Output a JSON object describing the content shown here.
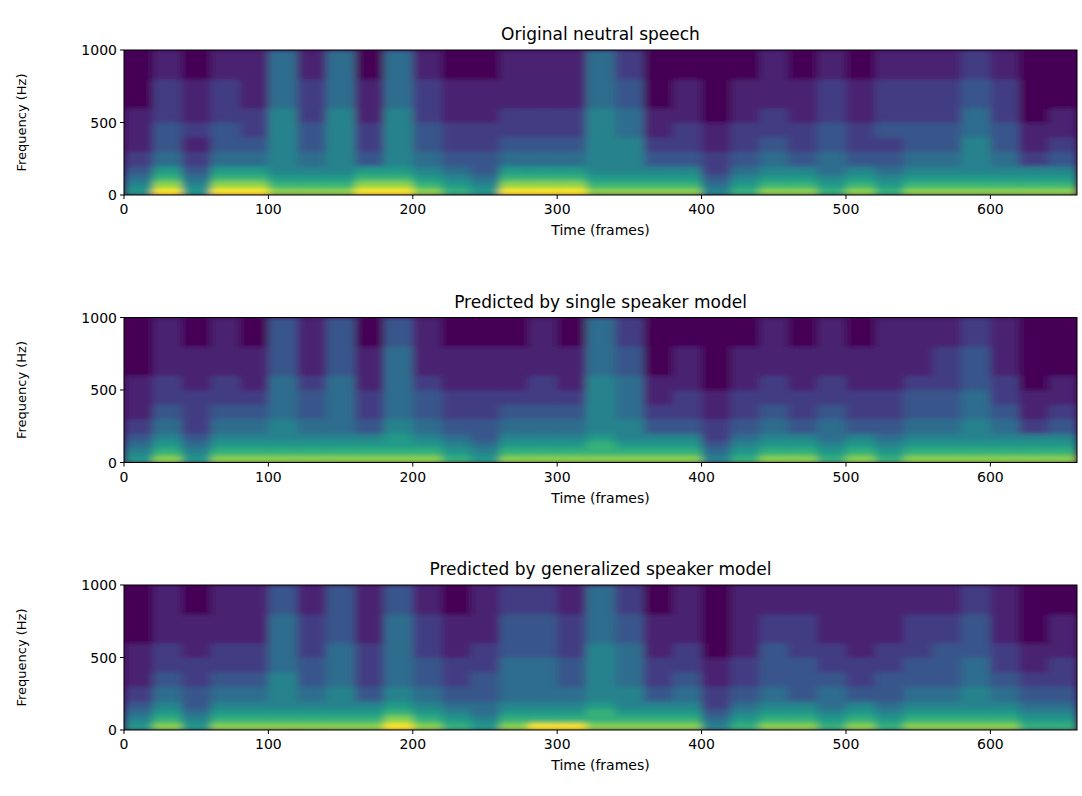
{
  "chart_data": [
    {
      "type": "heatmap",
      "title": "Original neutral speech",
      "x_label": "Time (frames)",
      "y_label": "Frequency (Hz)",
      "xlim": [
        0,
        660
      ],
      "ylim": [
        0,
        1000
      ],
      "xticks": [
        0,
        100,
        200,
        300,
        400,
        500,
        600
      ],
      "yticks": [
        0,
        500,
        1000
      ],
      "zlim": [
        0,
        9
      ],
      "x_bins": [
        0,
        20,
        40,
        60,
        80,
        100,
        120,
        140,
        160,
        180,
        200,
        220,
        240,
        260,
        280,
        300,
        320,
        340,
        360,
        380,
        400,
        420,
        440,
        460,
        480,
        500,
        520,
        540,
        560,
        580,
        600,
        620,
        640,
        660
      ],
      "y_bins": [
        0,
        50,
        100,
        150,
        200,
        300,
        400,
        500,
        600,
        800,
        1000
      ],
      "cells": [
        [
          6,
          9,
          6,
          9,
          9,
          8,
          8,
          8,
          9,
          9,
          8,
          7,
          6,
          9,
          9,
          9,
          8,
          8,
          8,
          8,
          5,
          7,
          8,
          8,
          7,
          8,
          7,
          8,
          8,
          8,
          8,
          8,
          8
        ],
        [
          5,
          8,
          5,
          8,
          8,
          7,
          7,
          7,
          8,
          8,
          7,
          6,
          5,
          8,
          8,
          8,
          7,
          7,
          7,
          7,
          4,
          6,
          7,
          7,
          6,
          7,
          6,
          7,
          7,
          7,
          7,
          7,
          7
        ],
        [
          4,
          7,
          4,
          7,
          7,
          6,
          6,
          6,
          7,
          7,
          6,
          5,
          4,
          7,
          7,
          7,
          6,
          6,
          6,
          6,
          3,
          5,
          6,
          6,
          5,
          6,
          5,
          6,
          6,
          6,
          6,
          6,
          6
        ],
        [
          3,
          6,
          3,
          6,
          6,
          5,
          5,
          5,
          6,
          6,
          5,
          4,
          3,
          6,
          6,
          6,
          5,
          5,
          5,
          5,
          2,
          4,
          5,
          5,
          4,
          5,
          4,
          5,
          5,
          5,
          5,
          5,
          5
        ],
        [
          2,
          4,
          2,
          4,
          4,
          5,
          4,
          5,
          3,
          5,
          4,
          3,
          3,
          4,
          4,
          4,
          5,
          5,
          3,
          3,
          2,
          3,
          4,
          3,
          4,
          3,
          3,
          4,
          4,
          5,
          4,
          2,
          3
        ],
        [
          1,
          3,
          1,
          3,
          3,
          5,
          3,
          5,
          2,
          5,
          3,
          2,
          2,
          3,
          3,
          3,
          5,
          5,
          2,
          2,
          1,
          2,
          3,
          2,
          3,
          2,
          2,
          3,
          3,
          5,
          3,
          1,
          2
        ],
        [
          1,
          3,
          2,
          3,
          2,
          5,
          3,
          5,
          2,
          5,
          3,
          2,
          2,
          2,
          2,
          2,
          5,
          4,
          1,
          2,
          1,
          2,
          2,
          2,
          3,
          2,
          3,
          3,
          3,
          4,
          3,
          1,
          1
        ],
        [
          1,
          2,
          1,
          2,
          2,
          5,
          2,
          5,
          1,
          5,
          2,
          1,
          1,
          2,
          2,
          2,
          5,
          4,
          1,
          1,
          0,
          1,
          2,
          1,
          2,
          1,
          2,
          2,
          2,
          4,
          2,
          0,
          1
        ],
        [
          0,
          2,
          1,
          2,
          1,
          4,
          2,
          4,
          1,
          4,
          2,
          1,
          1,
          1,
          1,
          1,
          4,
          3,
          0,
          1,
          0,
          1,
          1,
          1,
          2,
          1,
          2,
          2,
          2,
          3,
          2,
          0,
          0
        ],
        [
          0,
          1,
          0,
          1,
          1,
          4,
          1,
          4,
          0,
          4,
          1,
          0,
          0,
          1,
          1,
          1,
          4,
          2,
          0,
          0,
          0,
          0,
          1,
          0,
          1,
          0,
          1,
          1,
          1,
          2,
          1,
          0,
          0
        ]
      ]
    },
    {
      "type": "heatmap",
      "title": "Predicted by single speaker model",
      "x_label": "Time (frames)",
      "y_label": "Frequency (Hz)",
      "xlim": [
        0,
        660
      ],
      "ylim": [
        0,
        1000
      ],
      "xticks": [
        0,
        100,
        200,
        300,
        400,
        500,
        600
      ],
      "yticks": [
        0,
        500,
        1000
      ],
      "zlim": [
        0,
        9
      ],
      "x_bins": [
        0,
        20,
        40,
        60,
        80,
        100,
        120,
        140,
        160,
        180,
        200,
        220,
        240,
        260,
        280,
        300,
        320,
        340,
        360,
        380,
        400,
        420,
        440,
        460,
        480,
        500,
        520,
        540,
        560,
        580,
        600,
        620,
        640,
        660
      ],
      "y_bins": [
        0,
        50,
        100,
        150,
        200,
        300,
        400,
        500,
        600,
        800,
        1000
      ],
      "cells": [
        [
          6,
          8,
          6,
          8,
          8,
          8,
          8,
          8,
          8,
          8,
          8,
          7,
          6,
          8,
          8,
          8,
          8,
          8,
          8,
          8,
          5,
          7,
          8,
          8,
          7,
          8,
          7,
          8,
          8,
          8,
          8,
          8,
          8
        ],
        [
          5,
          7,
          5,
          7,
          7,
          7,
          7,
          7,
          7,
          7,
          7,
          6,
          5,
          7,
          7,
          7,
          7,
          7,
          7,
          7,
          4,
          6,
          7,
          7,
          6,
          7,
          6,
          7,
          7,
          7,
          7,
          7,
          7
        ],
        [
          4,
          6,
          4,
          6,
          6,
          6,
          6,
          6,
          6,
          6,
          6,
          5,
          4,
          6,
          6,
          6,
          7,
          6,
          6,
          6,
          3,
          5,
          6,
          6,
          5,
          6,
          5,
          6,
          6,
          6,
          6,
          6,
          6
        ],
        [
          3,
          5,
          3,
          5,
          5,
          5,
          5,
          5,
          5,
          6,
          5,
          4,
          3,
          5,
          5,
          5,
          6,
          5,
          5,
          5,
          2,
          4,
          5,
          5,
          4,
          5,
          4,
          5,
          5,
          5,
          5,
          5,
          5
        ],
        [
          2,
          4,
          2,
          4,
          4,
          5,
          4,
          4,
          3,
          5,
          4,
          3,
          3,
          4,
          4,
          4,
          5,
          5,
          3,
          3,
          2,
          3,
          4,
          3,
          4,
          3,
          3,
          4,
          4,
          5,
          4,
          2,
          3
        ],
        [
          1,
          3,
          2,
          3,
          3,
          4,
          3,
          4,
          2,
          4,
          3,
          2,
          2,
          3,
          3,
          3,
          5,
          4,
          2,
          2,
          1,
          2,
          3,
          2,
          3,
          2,
          2,
          3,
          3,
          4,
          3,
          1,
          2
        ],
        [
          1,
          2,
          2,
          2,
          2,
          4,
          3,
          4,
          2,
          4,
          3,
          2,
          2,
          2,
          2,
          2,
          5,
          4,
          1,
          2,
          1,
          2,
          2,
          2,
          2,
          2,
          2,
          3,
          3,
          4,
          2,
          1,
          1
        ],
        [
          1,
          2,
          1,
          2,
          1,
          4,
          2,
          4,
          1,
          4,
          2,
          1,
          1,
          1,
          2,
          1,
          5,
          4,
          1,
          1,
          0,
          1,
          2,
          1,
          2,
          1,
          1,
          2,
          2,
          3,
          2,
          0,
          1
        ],
        [
          0,
          1,
          1,
          1,
          1,
          3,
          1,
          3,
          1,
          4,
          1,
          1,
          1,
          1,
          1,
          1,
          4,
          3,
          0,
          1,
          0,
          1,
          1,
          1,
          1,
          1,
          1,
          1,
          2,
          3,
          1,
          0,
          0
        ],
        [
          0,
          1,
          0,
          1,
          0,
          3,
          1,
          3,
          0,
          3,
          1,
          0,
          0,
          0,
          1,
          0,
          4,
          2,
          0,
          0,
          0,
          0,
          1,
          0,
          1,
          0,
          1,
          1,
          1,
          2,
          1,
          0,
          0
        ]
      ]
    },
    {
      "type": "heatmap",
      "title": "Predicted by generalized speaker model",
      "x_label": "Time (frames)",
      "y_label": "Frequency (Hz)",
      "xlim": [
        0,
        660
      ],
      "ylim": [
        0,
        1000
      ],
      "xticks": [
        0,
        100,
        200,
        300,
        400,
        500,
        600
      ],
      "yticks": [
        0,
        500,
        1000
      ],
      "zlim": [
        0,
        9
      ],
      "x_bins": [
        0,
        20,
        40,
        60,
        80,
        100,
        120,
        140,
        160,
        180,
        200,
        220,
        240,
        260,
        280,
        300,
        320,
        340,
        360,
        380,
        400,
        420,
        440,
        460,
        480,
        500,
        520,
        540,
        560,
        580,
        600,
        620,
        640,
        660
      ],
      "y_bins": [
        0,
        50,
        100,
        150,
        200,
        300,
        400,
        500,
        600,
        800,
        1000
      ],
      "cells": [
        [
          6,
          8,
          6,
          8,
          8,
          8,
          8,
          8,
          8,
          9,
          8,
          7,
          6,
          8,
          9,
          9,
          8,
          8,
          8,
          8,
          5,
          7,
          8,
          8,
          7,
          8,
          7,
          8,
          8,
          8,
          8,
          7,
          7
        ],
        [
          5,
          7,
          5,
          7,
          7,
          7,
          7,
          7,
          7,
          8,
          7,
          6,
          5,
          7,
          7,
          7,
          7,
          7,
          7,
          7,
          4,
          6,
          7,
          7,
          6,
          7,
          6,
          7,
          7,
          7,
          7,
          6,
          6
        ],
        [
          4,
          6,
          4,
          6,
          6,
          6,
          6,
          6,
          6,
          7,
          6,
          5,
          4,
          6,
          6,
          6,
          7,
          6,
          6,
          6,
          3,
          5,
          6,
          6,
          5,
          6,
          5,
          6,
          6,
          6,
          6,
          5,
          5
        ],
        [
          3,
          5,
          3,
          5,
          5,
          5,
          5,
          5,
          5,
          6,
          5,
          4,
          4,
          5,
          5,
          5,
          6,
          5,
          5,
          5,
          2,
          4,
          5,
          5,
          4,
          5,
          4,
          5,
          5,
          5,
          5,
          4,
          4
        ],
        [
          2,
          4,
          3,
          4,
          4,
          5,
          4,
          5,
          3,
          5,
          4,
          3,
          3,
          4,
          4,
          4,
          5,
          5,
          3,
          4,
          2,
          3,
          4,
          3,
          4,
          3,
          3,
          4,
          4,
          5,
          4,
          3,
          3
        ],
        [
          1,
          3,
          2,
          3,
          3,
          5,
          3,
          4,
          2,
          4,
          3,
          2,
          3,
          4,
          4,
          3,
          5,
          4,
          2,
          3,
          1,
          2,
          3,
          3,
          3,
          2,
          3,
          3,
          3,
          4,
          3,
          2,
          2
        ],
        [
          1,
          2,
          2,
          2,
          2,
          4,
          3,
          4,
          2,
          4,
          3,
          2,
          2,
          4,
          4,
          3,
          5,
          4,
          2,
          2,
          1,
          2,
          3,
          3,
          2,
          2,
          2,
          3,
          3,
          4,
          2,
          1,
          2
        ],
        [
          1,
          2,
          1,
          2,
          2,
          4,
          2,
          4,
          2,
          4,
          2,
          1,
          2,
          3,
          3,
          2,
          5,
          4,
          1,
          2,
          0,
          1,
          3,
          2,
          2,
          1,
          2,
          2,
          3,
          3,
          2,
          1,
          1
        ],
        [
          0,
          1,
          1,
          1,
          1,
          4,
          2,
          3,
          1,
          4,
          2,
          1,
          1,
          3,
          3,
          2,
          4,
          3,
          1,
          1,
          0,
          1,
          2,
          2,
          1,
          1,
          1,
          2,
          2,
          3,
          1,
          0,
          1
        ],
        [
          0,
          1,
          0,
          1,
          1,
          3,
          1,
          3,
          1,
          3,
          1,
          0,
          1,
          2,
          2,
          1,
          4,
          2,
          0,
          1,
          0,
          1,
          1,
          1,
          1,
          1,
          1,
          1,
          1,
          2,
          1,
          0,
          0
        ]
      ]
    }
  ]
}
